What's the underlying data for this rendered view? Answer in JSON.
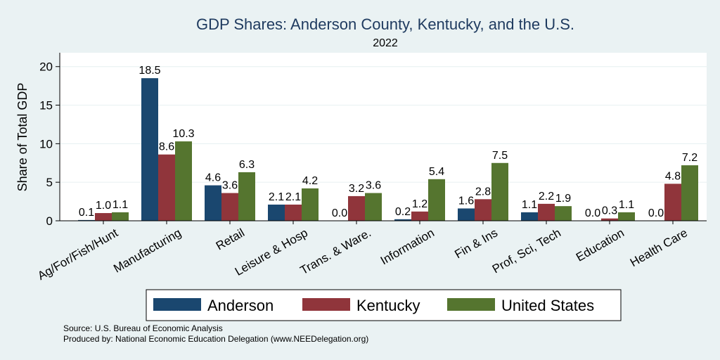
{
  "chart_data": {
    "type": "bar",
    "title": "GDP Shares: Anderson County, Kentucky, and the U.S.",
    "subtitle": "2022",
    "xlabel": "",
    "ylabel": "Share of Total GDP",
    "ylim": [
      0,
      21.8
    ],
    "yticks": [
      0,
      5,
      10,
      15,
      20
    ],
    "grid": true,
    "legend_position": "bottom",
    "categories": [
      "Ag/For/Fish/Hunt",
      "Manufacturing",
      "Retail",
      "Leisure & Hosp",
      "Trans. & Ware.",
      "Information",
      "Fin & Ins",
      "Prof, Sci, Tech",
      "Education",
      "Health Care"
    ],
    "series": [
      {
        "name": "Anderson",
        "color": "#1a476f",
        "values": [
          0.1,
          18.5,
          4.6,
          2.1,
          0.0,
          0.2,
          1.6,
          1.1,
          0.0,
          0.0
        ]
      },
      {
        "name": "Kentucky",
        "color": "#90353b",
        "values": [
          1.0,
          8.6,
          3.6,
          2.1,
          3.2,
          1.2,
          2.8,
          2.2,
          0.3,
          4.8
        ]
      },
      {
        "name": "United States",
        "color": "#55752f",
        "values": [
          1.1,
          10.3,
          6.3,
          4.2,
          3.6,
          5.4,
          7.5,
          1.9,
          1.1,
          7.2
        ]
      }
    ]
  },
  "notes": {
    "source": "Source: U.S. Bureau of Economic Analysis",
    "produced_by": "Produced by: National Economic Education Delegation (www.NEEDelegation.org)"
  }
}
